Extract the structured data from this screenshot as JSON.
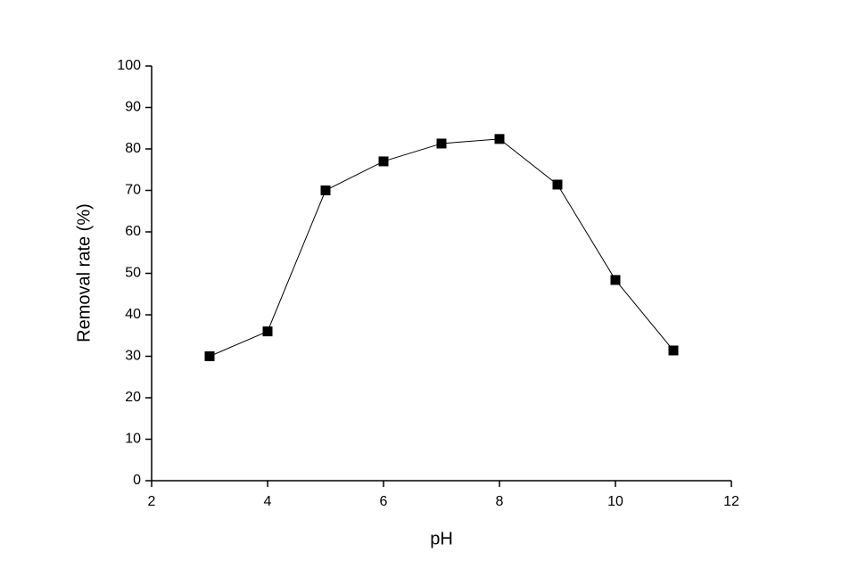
{
  "chart_data": {
    "type": "line",
    "x_label": "pH",
    "y_label": "Removal rate (%)",
    "x": [
      3,
      4,
      5,
      6,
      7,
      8,
      9,
      10,
      11
    ],
    "series": [
      {
        "color": "#000000",
        "values": [
          30,
          36,
          70,
          77,
          81.3,
          82.4,
          71.4,
          48.4,
          31.4
        ]
      }
    ],
    "xlim": [
      2,
      12
    ],
    "xticks": [
      2,
      4,
      6,
      8,
      10,
      12
    ],
    "ylim": [
      0,
      100
    ],
    "yticks": [
      0,
      10,
      20,
      30,
      40,
      50,
      60,
      70,
      80,
      90,
      100
    ],
    "grid": false
  }
}
